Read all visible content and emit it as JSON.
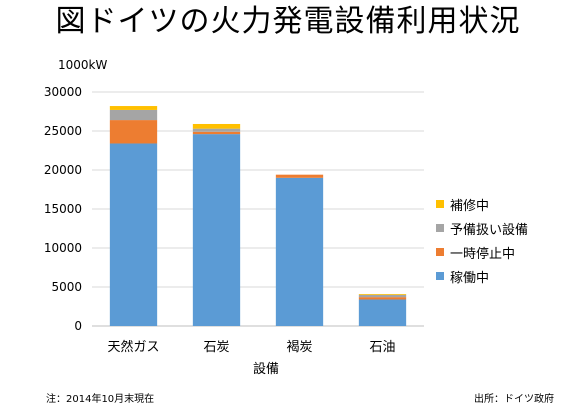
{
  "header": {
    "title": "図ドイツの火力発電設備利用状況",
    "unit": "1000kW"
  },
  "footer": {
    "note": "注：2014年10月末現在",
    "source": "出所：ドイツ政府"
  },
  "colors": {
    "稼働中": "#5B9BD5",
    "一時停止中": "#ED7D31",
    "予備扱い設備": "#A5A5A5",
    "補修中": "#FFC000",
    "grid": "#D9D9D9",
    "axis": "#BFBFBF"
  },
  "chart_data": {
    "type": "bar",
    "stacked": true,
    "categories": [
      "天然ガス",
      "石炭",
      "褐炭",
      "石油"
    ],
    "series": [
      {
        "name": "稼働中",
        "values": [
          23400,
          24600,
          19000,
          3400
        ]
      },
      {
        "name": "一時停止中",
        "values": [
          3000,
          300,
          400,
          300
        ]
      },
      {
        "name": "予備扱い設備",
        "values": [
          1300,
          400,
          0,
          300
        ]
      },
      {
        "name": "補修中",
        "values": [
          500,
          600,
          0,
          100
        ]
      }
    ],
    "legend_order": [
      "補修中",
      "予備扱い設備",
      "一時停止中",
      "稼働中"
    ],
    "xlabel": "設備",
    "ylabel": "",
    "ylim": [
      0,
      30000
    ],
    "yticks": [
      0,
      5000,
      10000,
      15000,
      20000,
      25000,
      30000
    ],
    "grid": true,
    "legend_position": "right"
  }
}
